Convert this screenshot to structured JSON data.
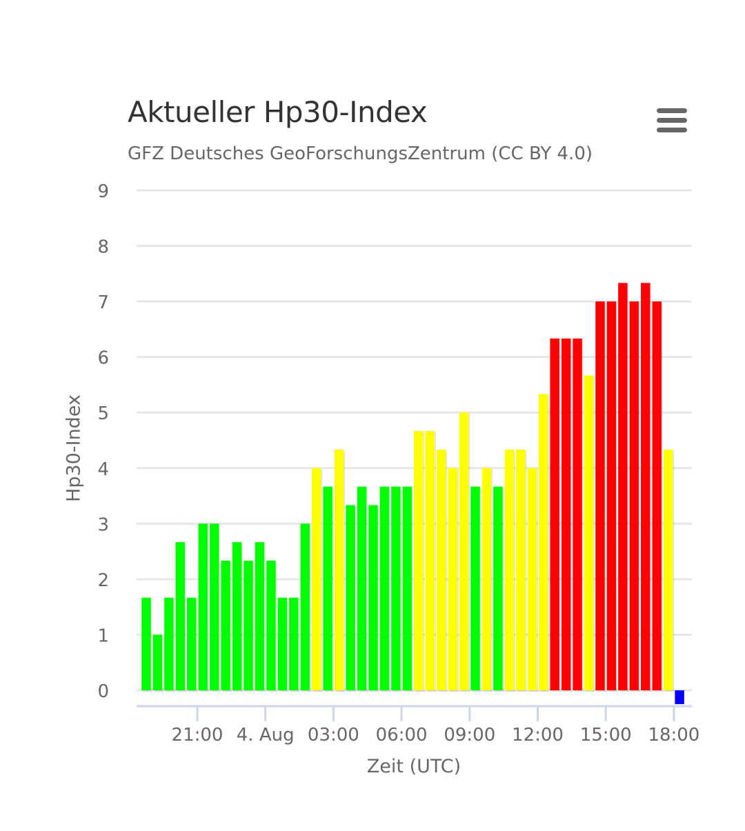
{
  "chart_data": {
    "type": "bar",
    "title": "Aktueller Hp30-Index",
    "subtitle": "GFZ Deutsches GeoForschungsZentrum (CC BY 4.0)",
    "xlabel": "Zeit (UTC)",
    "ylabel": "Hp30-Index",
    "ylim": [
      0,
      9
    ],
    "yticks": [
      "0",
      "1",
      "2",
      "3",
      "4",
      "5",
      "6",
      "7",
      "8",
      "9"
    ],
    "xticks": [
      {
        "label": "21:00",
        "hour": 21
      },
      {
        "label": "4. Aug",
        "hour": 24
      },
      {
        "label": "03:00",
        "hour": 27
      },
      {
        "label": "06:00",
        "hour": 30
      },
      {
        "label": "09:00",
        "hour": 33
      },
      {
        "label": "12:00",
        "hour": 36
      },
      {
        "label": "15:00",
        "hour": 39
      },
      {
        "label": "18:00",
        "hour": 42
      }
    ],
    "grid": true,
    "bar_width_hours": 0.5,
    "bar_start_hour": 18.5,
    "values": [
      1.667,
      1.0,
      1.667,
      2.667,
      1.667,
      3.0,
      3.0,
      2.333,
      2.667,
      2.333,
      2.667,
      2.333,
      1.667,
      1.667,
      3.0,
      4.0,
      3.667,
      4.333,
      3.333,
      3.667,
      3.333,
      3.667,
      3.667,
      3.667,
      4.667,
      4.667,
      4.333,
      4.0,
      5.0,
      3.667,
      4.0,
      3.667,
      4.333,
      4.333,
      4.0,
      5.333,
      6.333,
      6.333,
      6.333,
      5.667,
      7.0,
      7.0,
      7.333,
      7.0,
      7.333,
      7.0,
      4.333,
      0
    ],
    "colors": {
      "low": "#00ff00",
      "mid": "#ffff00",
      "high": "#ff0000",
      "current": "#0000ff"
    },
    "color_thresholds": [
      4,
      6
    ]
  },
  "menu_icon": "hamburger-menu-icon"
}
